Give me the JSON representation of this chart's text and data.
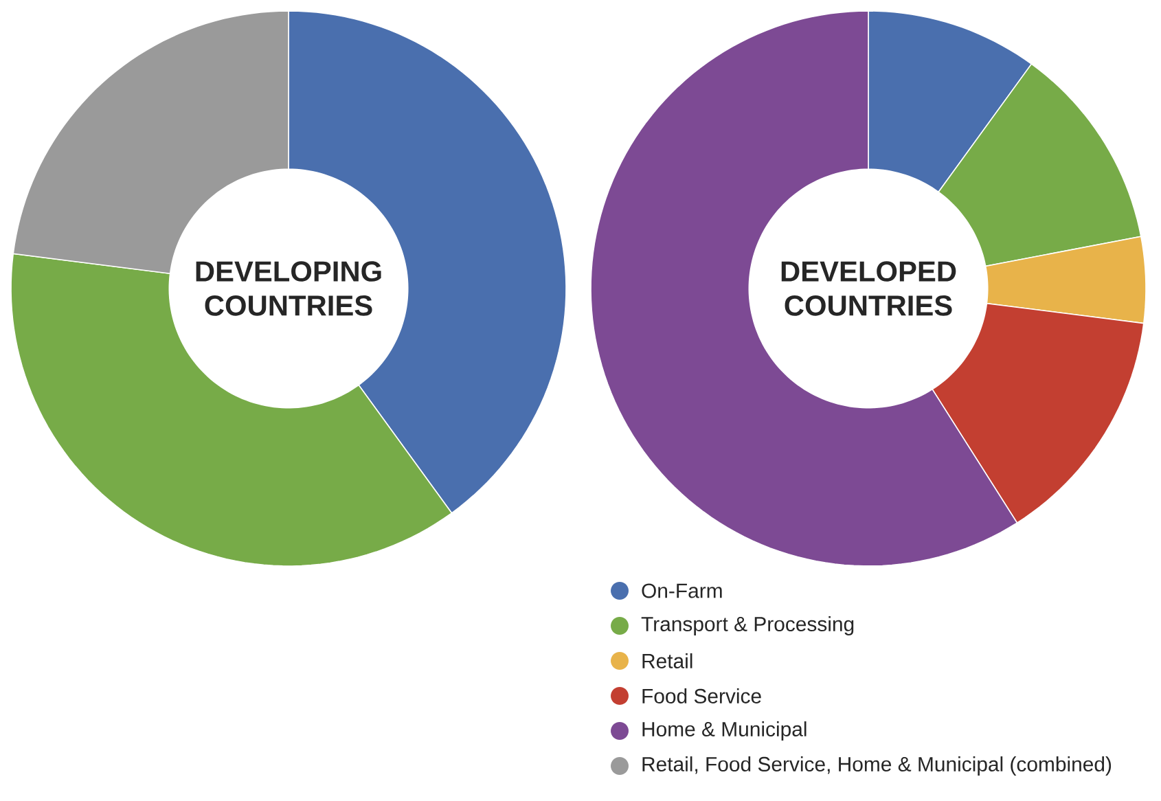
{
  "chart_data": [
    {
      "type": "donut",
      "title": "DEVELOPING COUNTRIES",
      "categories": [
        null,
        null,
        "Retail, Food Service, Home & Municipal (combined)"
      ],
      "values": [
        40,
        37,
        23
      ],
      "colors": [
        "#4a6fae",
        "#77ab48",
        "#9a9a9a"
      ],
      "legend": "bottom"
    },
    {
      "type": "donut",
      "title": "DEVELOPED COUNTRIES",
      "categories": [
        "On-Farm",
        "Transport & Processing",
        "Retail",
        "Food Service",
        "Home & Municipal"
      ],
      "values": [
        10,
        12,
        5,
        14,
        59
      ],
      "colors": [
        "#4a6fae",
        "#77ab48",
        "#e8b34a",
        "#c33f31",
        "#7d4a94"
      ],
      "legend": "bottom"
    }
  ]
}
